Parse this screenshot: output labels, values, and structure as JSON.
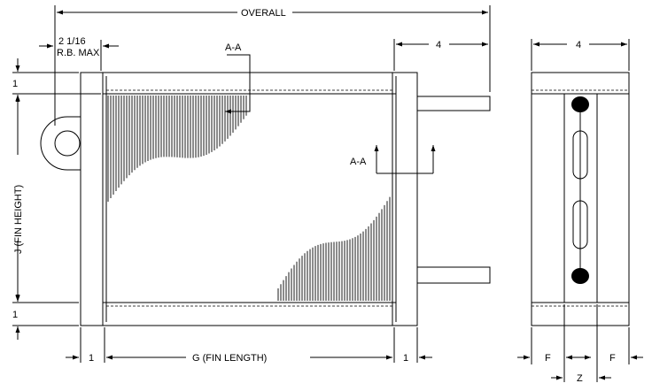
{
  "labels": {
    "overall": "OVERALL",
    "rb_max_1": "2 1/16",
    "rb_max_2": "R.B. MAX",
    "section_aa_top": "A-A",
    "section_aa_mid": "A-A",
    "width_front": "4",
    "width_side": "4",
    "top_frame": "1",
    "bottom_frame": "1",
    "fin_height": "J (FIN HEIGHT)",
    "left_frame": "1",
    "fin_length": "G (FIN LENGTH)",
    "right_frame": "1",
    "f_left": "F",
    "f_right": "F",
    "z": "Z"
  }
}
